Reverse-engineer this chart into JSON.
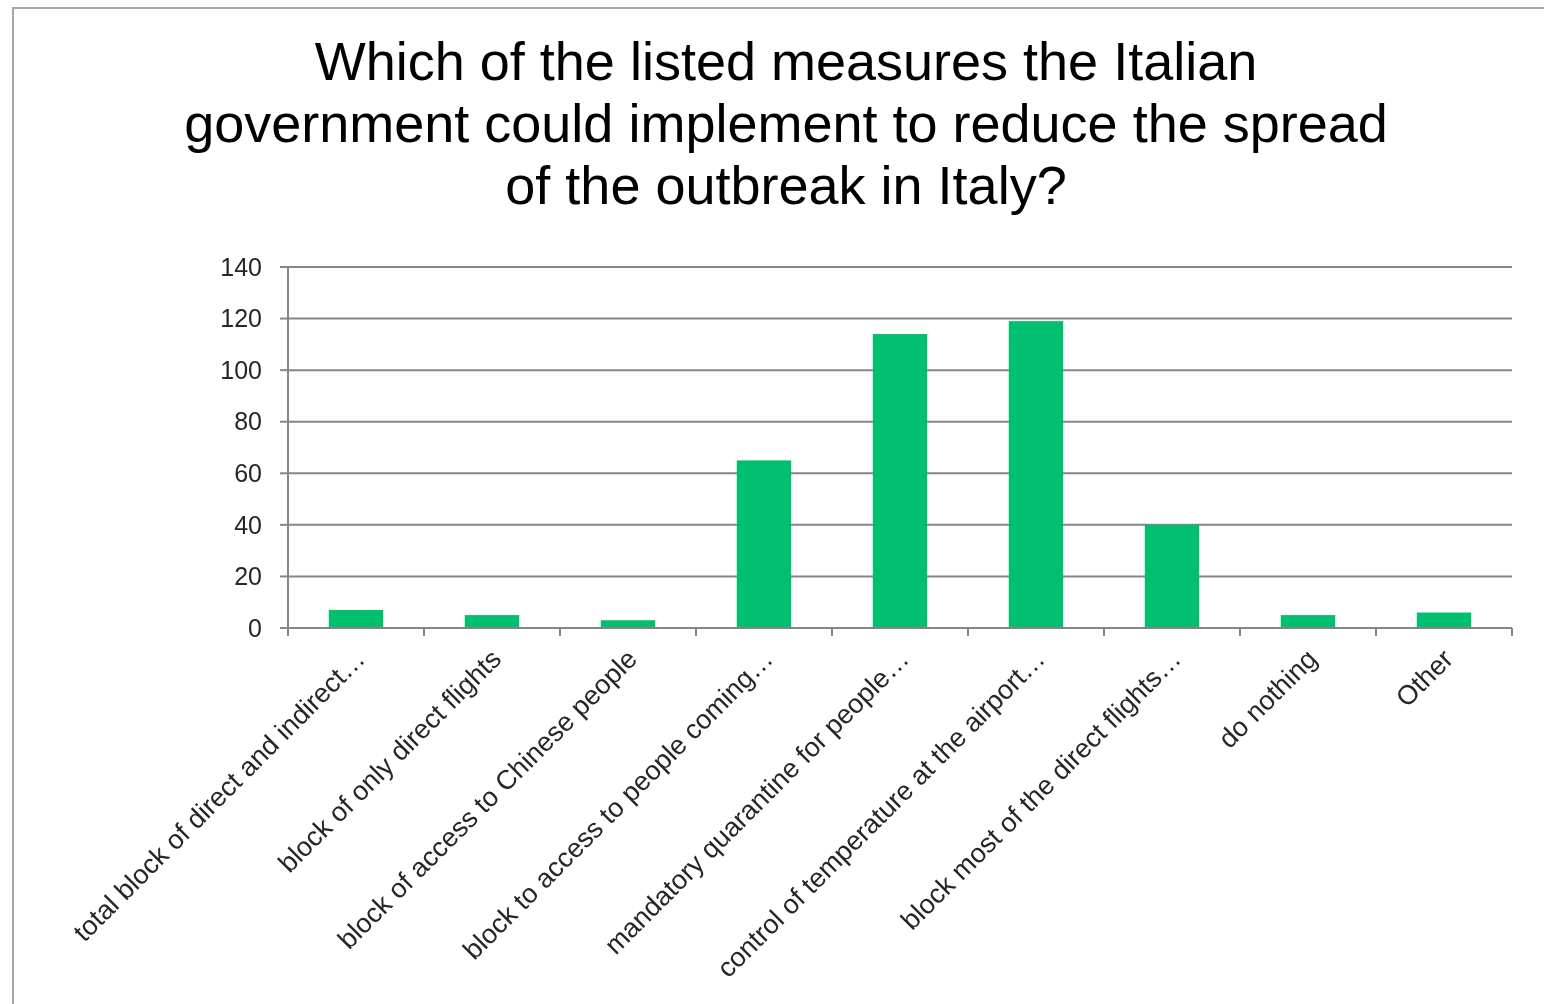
{
  "chart_data": {
    "type": "bar",
    "title": "Which of the listed measures the Italian government could implement to reduce the spread of the outbreak in Italy?",
    "categories": [
      "total block of direct and indirect…",
      "block of only direct flights",
      "block of access to Chinese people",
      "block to access to people coming…",
      "mandatory quarantine for people…",
      "control of temperature at the airport…",
      "block most of the direct flights…",
      "do nothing",
      "Other"
    ],
    "values": [
      7,
      5,
      3,
      65,
      114,
      119,
      40,
      5,
      6
    ],
    "color": "#00bf6f",
    "ylim": [
      0,
      140
    ],
    "yticks": [
      0,
      20,
      40,
      60,
      80,
      100,
      120,
      140
    ],
    "grid": "y"
  }
}
